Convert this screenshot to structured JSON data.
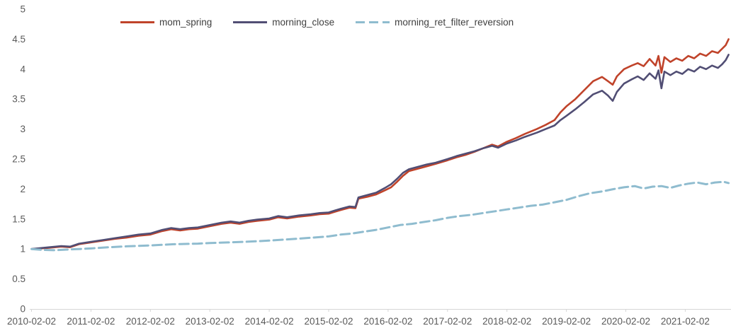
{
  "chart_data": {
    "type": "line",
    "title": "",
    "xlabel": "",
    "ylabel": "",
    "grid": "off",
    "legend_position": "top",
    "x_axis": {
      "tick_labels": [
        "2010-02-02",
        "2011-02-02",
        "2012-02-02",
        "2013-02-02",
        "2014-02-02",
        "2015-02-02",
        "2016-02-02",
        "2017-02-02",
        "2018-02-02",
        "2019-02-02",
        "2020-02-02",
        "2021-02-02"
      ],
      "units": "date",
      "range_years_from_first_tick": [
        0,
        11.77
      ]
    },
    "y_axis": {
      "ticks": [
        0,
        0.5,
        1,
        1.5,
        2,
        2.5,
        3,
        3.5,
        4,
        4.5,
        5
      ],
      "range": [
        0,
        5
      ]
    },
    "colors": {
      "axis_text": "#595959",
      "axis_line": "#d6d6d6",
      "legend_text": "#3f3f3f",
      "background": "#ffffff",
      "mom_spring": "#c0432a",
      "morning_close": "#514e74",
      "morning_ret_filter_reversion": "#8fbccf"
    },
    "series": [
      {
        "name": "mom_spring",
        "color": "#c0432a",
        "style": "solid",
        "points": [
          [
            0,
            1.0
          ],
          [
            0.15,
            1.01
          ],
          [
            0.3,
            1.02
          ],
          [
            0.5,
            1.04
          ],
          [
            0.65,
            1.03
          ],
          [
            0.8,
            1.08
          ],
          [
            1.0,
            1.11
          ],
          [
            1.2,
            1.14
          ],
          [
            1.4,
            1.17
          ],
          [
            1.6,
            1.19
          ],
          [
            1.8,
            1.22
          ],
          [
            2.0,
            1.24
          ],
          [
            2.2,
            1.3
          ],
          [
            2.35,
            1.33
          ],
          [
            2.5,
            1.31
          ],
          [
            2.65,
            1.33
          ],
          [
            2.8,
            1.34
          ],
          [
            3.0,
            1.38
          ],
          [
            3.2,
            1.42
          ],
          [
            3.35,
            1.44
          ],
          [
            3.5,
            1.42
          ],
          [
            3.65,
            1.45
          ],
          [
            3.8,
            1.47
          ],
          [
            4.0,
            1.49
          ],
          [
            4.15,
            1.53
          ],
          [
            4.3,
            1.51
          ],
          [
            4.5,
            1.54
          ],
          [
            4.7,
            1.56
          ],
          [
            4.85,
            1.58
          ],
          [
            5.0,
            1.59
          ],
          [
            5.1,
            1.62
          ],
          [
            5.2,
            1.65
          ],
          [
            5.35,
            1.69
          ],
          [
            5.45,
            1.68
          ],
          [
            5.5,
            1.84
          ],
          [
            5.65,
            1.87
          ],
          [
            5.8,
            1.91
          ],
          [
            5.95,
            1.98
          ],
          [
            6.05,
            2.03
          ],
          [
            6.15,
            2.12
          ],
          [
            6.25,
            2.22
          ],
          [
            6.35,
            2.3
          ],
          [
            6.5,
            2.34
          ],
          [
            6.65,
            2.38
          ],
          [
            6.8,
            2.42
          ],
          [
            7.0,
            2.48
          ],
          [
            7.15,
            2.53
          ],
          [
            7.3,
            2.57
          ],
          [
            7.45,
            2.62
          ],
          [
            7.6,
            2.68
          ],
          [
            7.75,
            2.74
          ],
          [
            7.85,
            2.71
          ],
          [
            8.0,
            2.79
          ],
          [
            8.15,
            2.85
          ],
          [
            8.3,
            2.92
          ],
          [
            8.5,
            3.0
          ],
          [
            8.65,
            3.07
          ],
          [
            8.8,
            3.15
          ],
          [
            8.9,
            3.28
          ],
          [
            9.0,
            3.38
          ],
          [
            9.15,
            3.5
          ],
          [
            9.3,
            3.65
          ],
          [
            9.45,
            3.8
          ],
          [
            9.6,
            3.87
          ],
          [
            9.7,
            3.8
          ],
          [
            9.78,
            3.74
          ],
          [
            9.85,
            3.88
          ],
          [
            9.97,
            4.0
          ],
          [
            10.1,
            4.06
          ],
          [
            10.2,
            4.1
          ],
          [
            10.3,
            4.05
          ],
          [
            10.4,
            4.17
          ],
          [
            10.5,
            4.06
          ],
          [
            10.55,
            4.22
          ],
          [
            10.6,
            3.94
          ],
          [
            10.65,
            4.2
          ],
          [
            10.75,
            4.12
          ],
          [
            10.85,
            4.18
          ],
          [
            10.95,
            4.14
          ],
          [
            11.05,
            4.22
          ],
          [
            11.15,
            4.18
          ],
          [
            11.25,
            4.26
          ],
          [
            11.35,
            4.22
          ],
          [
            11.45,
            4.3
          ],
          [
            11.55,
            4.27
          ],
          [
            11.62,
            4.34
          ],
          [
            11.68,
            4.4
          ],
          [
            11.73,
            4.5
          ]
        ]
      },
      {
        "name": "morning_close",
        "color": "#514e74",
        "style": "solid",
        "points": [
          [
            0,
            1.0
          ],
          [
            0.15,
            1.015
          ],
          [
            0.3,
            1.03
          ],
          [
            0.5,
            1.05
          ],
          [
            0.65,
            1.04
          ],
          [
            0.8,
            1.09
          ],
          [
            1.0,
            1.12
          ],
          [
            1.2,
            1.15
          ],
          [
            1.4,
            1.18
          ],
          [
            1.6,
            1.21
          ],
          [
            1.8,
            1.24
          ],
          [
            2.0,
            1.26
          ],
          [
            2.2,
            1.32
          ],
          [
            2.35,
            1.35
          ],
          [
            2.5,
            1.33
          ],
          [
            2.65,
            1.35
          ],
          [
            2.8,
            1.36
          ],
          [
            3.0,
            1.4
          ],
          [
            3.2,
            1.44
          ],
          [
            3.35,
            1.46
          ],
          [
            3.5,
            1.44
          ],
          [
            3.65,
            1.47
          ],
          [
            3.8,
            1.49
          ],
          [
            4.0,
            1.51
          ],
          [
            4.15,
            1.55
          ],
          [
            4.3,
            1.53
          ],
          [
            4.5,
            1.56
          ],
          [
            4.7,
            1.58
          ],
          [
            4.85,
            1.6
          ],
          [
            5.0,
            1.61
          ],
          [
            5.1,
            1.64
          ],
          [
            5.2,
            1.67
          ],
          [
            5.35,
            1.71
          ],
          [
            5.45,
            1.7
          ],
          [
            5.5,
            1.86
          ],
          [
            5.65,
            1.9
          ],
          [
            5.8,
            1.94
          ],
          [
            5.95,
            2.02
          ],
          [
            6.05,
            2.08
          ],
          [
            6.15,
            2.17
          ],
          [
            6.25,
            2.27
          ],
          [
            6.35,
            2.33
          ],
          [
            6.5,
            2.37
          ],
          [
            6.65,
            2.41
          ],
          [
            6.8,
            2.44
          ],
          [
            7.0,
            2.5
          ],
          [
            7.15,
            2.55
          ],
          [
            7.3,
            2.59
          ],
          [
            7.45,
            2.63
          ],
          [
            7.6,
            2.68
          ],
          [
            7.75,
            2.72
          ],
          [
            7.85,
            2.69
          ],
          [
            8.0,
            2.76
          ],
          [
            8.15,
            2.81
          ],
          [
            8.3,
            2.87
          ],
          [
            8.5,
            2.94
          ],
          [
            8.65,
            3.0
          ],
          [
            8.8,
            3.06
          ],
          [
            8.9,
            3.15
          ],
          [
            9.0,
            3.22
          ],
          [
            9.15,
            3.33
          ],
          [
            9.3,
            3.45
          ],
          [
            9.45,
            3.58
          ],
          [
            9.6,
            3.64
          ],
          [
            9.7,
            3.56
          ],
          [
            9.78,
            3.47
          ],
          [
            9.85,
            3.62
          ],
          [
            9.97,
            3.76
          ],
          [
            10.1,
            3.83
          ],
          [
            10.2,
            3.88
          ],
          [
            10.3,
            3.82
          ],
          [
            10.4,
            3.93
          ],
          [
            10.5,
            3.84
          ],
          [
            10.55,
            3.98
          ],
          [
            10.6,
            3.68
          ],
          [
            10.65,
            3.96
          ],
          [
            10.75,
            3.9
          ],
          [
            10.85,
            3.96
          ],
          [
            10.95,
            3.92
          ],
          [
            11.05,
            4.0
          ],
          [
            11.15,
            3.96
          ],
          [
            11.25,
            4.04
          ],
          [
            11.35,
            4.0
          ],
          [
            11.45,
            4.06
          ],
          [
            11.55,
            4.02
          ],
          [
            11.62,
            4.08
          ],
          [
            11.68,
            4.15
          ],
          [
            11.73,
            4.24
          ]
        ]
      },
      {
        "name": "morning_ret_filter_reversion",
        "color": "#8fbccf",
        "style": "dashed",
        "points": [
          [
            0,
            1.0
          ],
          [
            0.2,
            0.985
          ],
          [
            0.4,
            0.98
          ],
          [
            0.6,
            0.99
          ],
          [
            0.8,
            1.0
          ],
          [
            1.0,
            1.01
          ],
          [
            1.3,
            1.03
          ],
          [
            1.6,
            1.045
          ],
          [
            2.0,
            1.06
          ],
          [
            2.4,
            1.08
          ],
          [
            2.8,
            1.09
          ],
          [
            3.0,
            1.1
          ],
          [
            3.3,
            1.11
          ],
          [
            3.6,
            1.12
          ],
          [
            4.0,
            1.14
          ],
          [
            4.3,
            1.16
          ],
          [
            4.6,
            1.18
          ],
          [
            5.0,
            1.21
          ],
          [
            5.2,
            1.24
          ],
          [
            5.4,
            1.26
          ],
          [
            5.6,
            1.29
          ],
          [
            5.8,
            1.32
          ],
          [
            6.0,
            1.36
          ],
          [
            6.2,
            1.4
          ],
          [
            6.4,
            1.42
          ],
          [
            6.6,
            1.45
          ],
          [
            6.8,
            1.48
          ],
          [
            7.0,
            1.52
          ],
          [
            7.2,
            1.55
          ],
          [
            7.4,
            1.57
          ],
          [
            7.6,
            1.6
          ],
          [
            7.8,
            1.63
          ],
          [
            8.0,
            1.66
          ],
          [
            8.2,
            1.69
          ],
          [
            8.4,
            1.72
          ],
          [
            8.6,
            1.74
          ],
          [
            8.8,
            1.78
          ],
          [
            9.0,
            1.82
          ],
          [
            9.2,
            1.88
          ],
          [
            9.4,
            1.93
          ],
          [
            9.6,
            1.96
          ],
          [
            9.8,
            2.0
          ],
          [
            9.97,
            2.03
          ],
          [
            10.15,
            2.05
          ],
          [
            10.3,
            2.01
          ],
          [
            10.45,
            2.04
          ],
          [
            10.6,
            2.05
          ],
          [
            10.75,
            2.02
          ],
          [
            10.9,
            2.06
          ],
          [
            11.05,
            2.09
          ],
          [
            11.2,
            2.11
          ],
          [
            11.35,
            2.08
          ],
          [
            11.5,
            2.11
          ],
          [
            11.65,
            2.12
          ],
          [
            11.73,
            2.1
          ]
        ]
      }
    ],
    "legend": [
      {
        "label": "mom_spring"
      },
      {
        "label": "morning_close"
      },
      {
        "label": "morning_ret_filter_reversion"
      }
    ]
  }
}
